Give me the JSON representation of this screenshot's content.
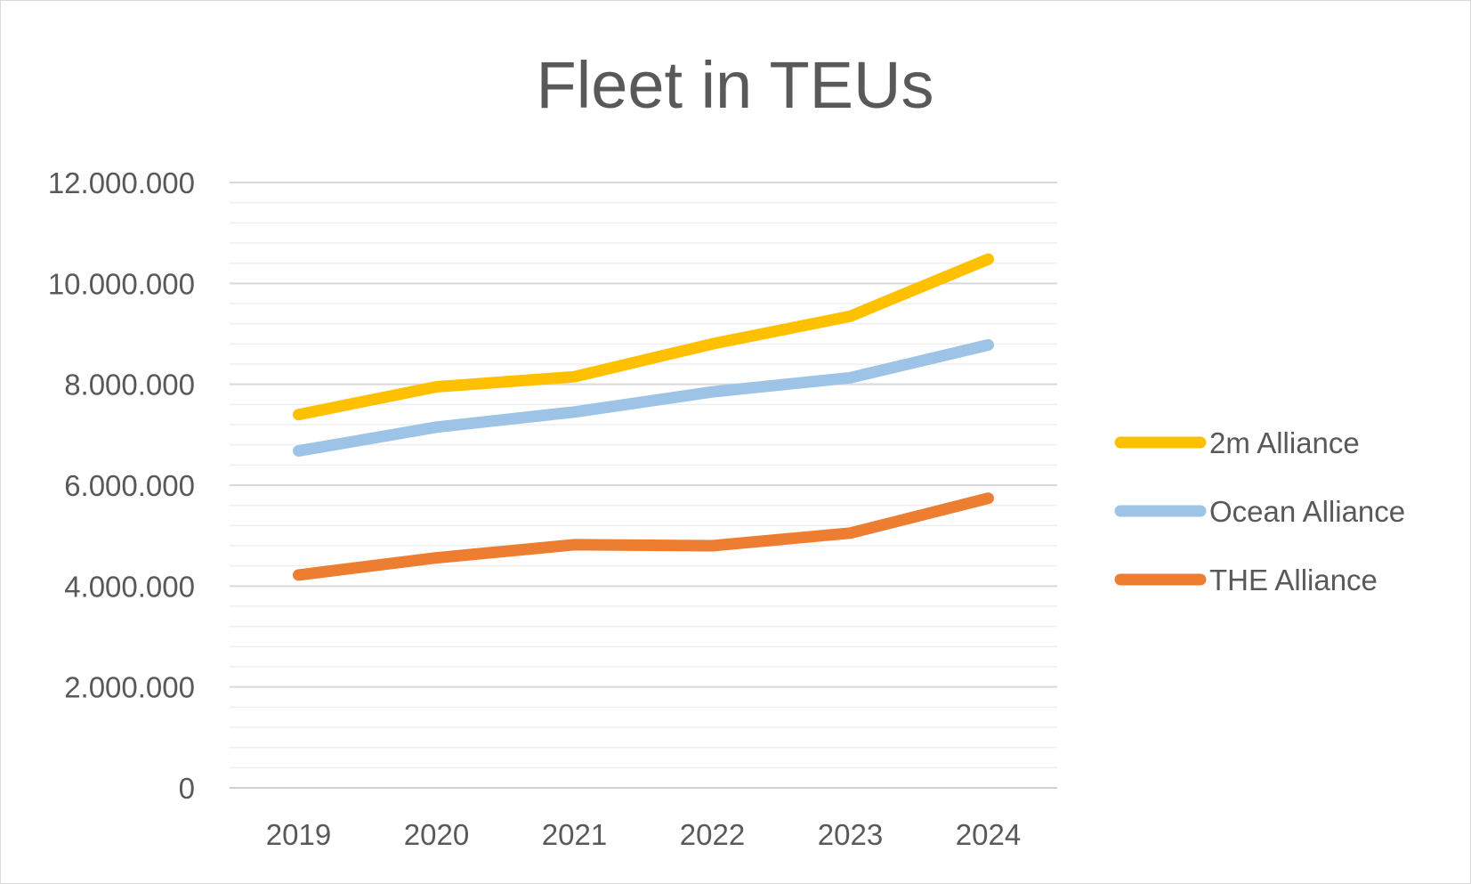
{
  "chart_data": {
    "type": "line",
    "title": "Fleet in TEUs",
    "xlabel": "",
    "ylabel": "",
    "categories": [
      "2019",
      "2020",
      "2021",
      "2022",
      "2023",
      "2024"
    ],
    "ylim": [
      0,
      12000000
    ],
    "y_ticks": [
      0,
      2000000,
      4000000,
      6000000,
      8000000,
      10000000,
      12000000
    ],
    "y_tick_labels": [
      "0",
      "2.000.000",
      "4.000.000",
      "6.000.000",
      "8.000.000",
      "10.000.000",
      "12.000.000"
    ],
    "minor_gridlines_per_major": 5,
    "grid": true,
    "legend_position": "right",
    "series": [
      {
        "name": "2m Alliance",
        "color": "#FFC000",
        "values": [
          7400000,
          7950000,
          8150000,
          8800000,
          9350000,
          10480000
        ]
      },
      {
        "name": "Ocean Alliance",
        "color": "#9DC3E6",
        "values": [
          6680000,
          7150000,
          7450000,
          7850000,
          8130000,
          8780000
        ]
      },
      {
        "name": "THE Alliance",
        "color": "#ED7D31",
        "values": [
          4220000,
          4560000,
          4820000,
          4800000,
          5050000,
          5740000
        ]
      }
    ]
  }
}
